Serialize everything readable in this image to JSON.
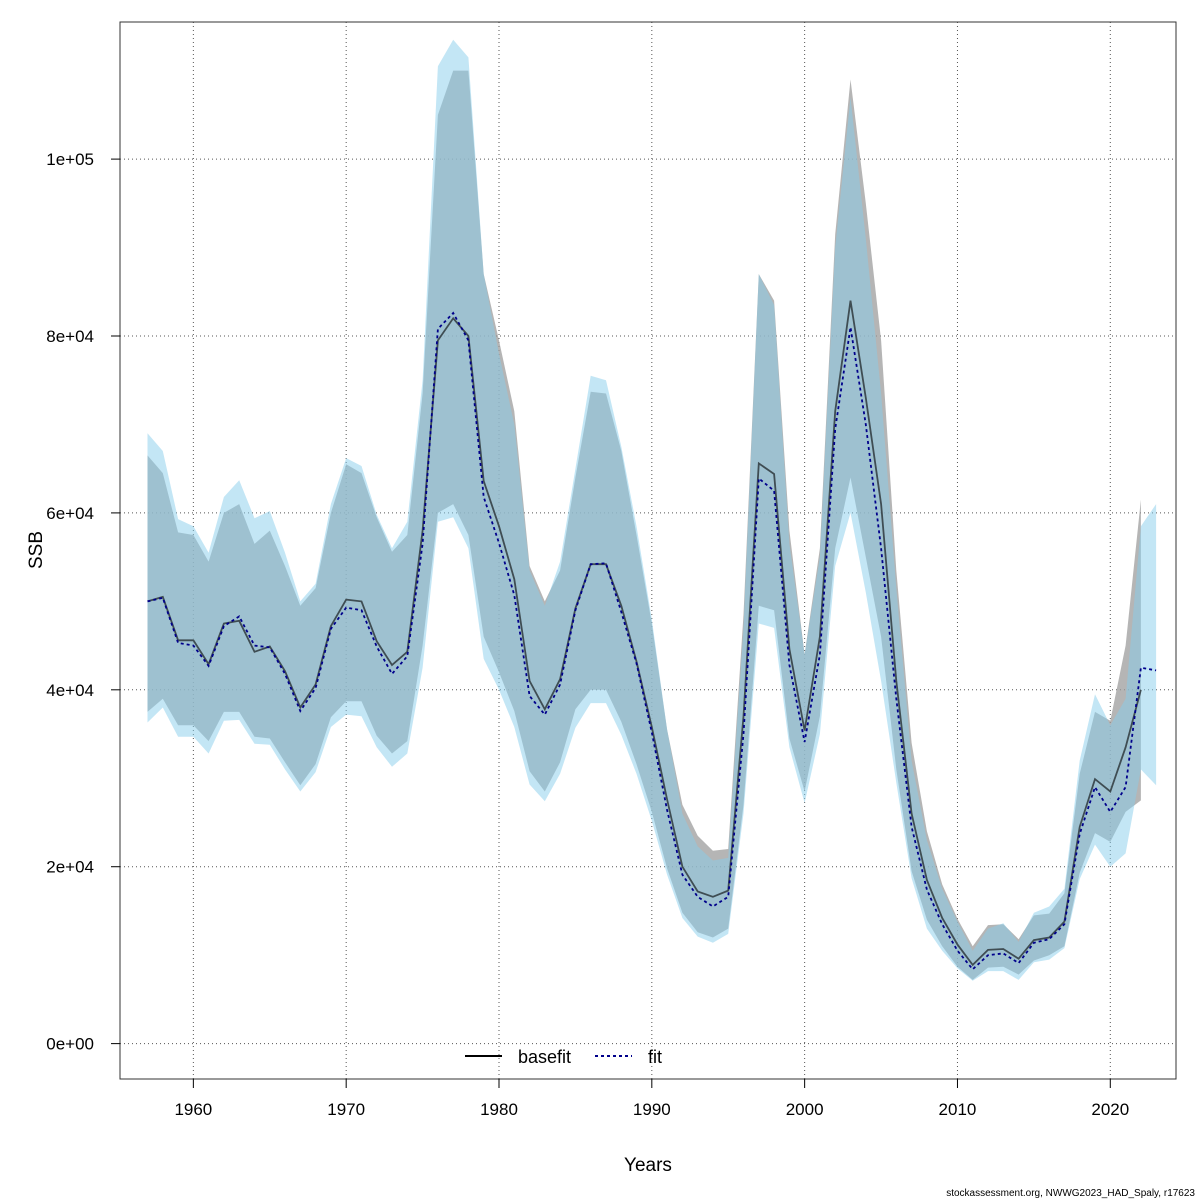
{
  "chart_data": {
    "type": "line",
    "xlabel": "Years",
    "ylabel": "SSB",
    "xlim": [
      1955.2,
      2024.3
    ],
    "ylim": [
      -4000,
      115500
    ],
    "x_ticks": [
      1960,
      1970,
      1980,
      1990,
      2000,
      2010,
      2020
    ],
    "x_tick_labels": [
      "1960",
      "1970",
      "1980",
      "1990",
      "2000",
      "2010",
      "2020"
    ],
    "y_ticks": [
      0,
      20000,
      40000,
      60000,
      80000,
      100000
    ],
    "y_tick_labels": [
      "0e+00",
      "2e+04",
      "4e+04",
      "6e+04",
      "8e+04",
      "1e+05"
    ],
    "grid": true,
    "legend_position": "bottom-center",
    "caption": "stockassessment.org, NWWG2023_HAD_Spaly, r17623",
    "colors": {
      "basefit_band": "#9c9c9c",
      "basefit_line": "#000000",
      "fit_band": "#87ceeb",
      "fit_line": "#00008b"
    },
    "series": [
      {
        "name": "basefit",
        "style": "solid",
        "x": [
          1957,
          1958,
          1959,
          1960,
          1961,
          1962,
          1963,
          1964,
          1965,
          1966,
          1967,
          1968,
          1969,
          1970,
          1971,
          1972,
          1973,
          1974,
          1975,
          1976,
          1977,
          1978,
          1979,
          1980,
          1981,
          1982,
          1983,
          1984,
          1985,
          1986,
          1987,
          1988,
          1989,
          1990,
          1991,
          1992,
          1993,
          1994,
          1995,
          1996,
          1997,
          1998,
          1999,
          2000,
          2001,
          2002,
          2003,
          2004,
          2005,
          2006,
          2007,
          2008,
          2009,
          2010,
          2011,
          2012,
          2013,
          2014,
          2015,
          2016,
          2017,
          2018,
          2019,
          2020,
          2021,
          2022
        ],
        "y": [
          50000,
          50500,
          45600,
          45600,
          42900,
          47500,
          47800,
          44300,
          44900,
          42100,
          38000,
          40600,
          47200,
          50200,
          50000,
          45500,
          42800,
          44300,
          58000,
          79500,
          82000,
          80000,
          63600,
          58500,
          52500,
          41000,
          37800,
          41200,
          49200,
          54200,
          54200,
          49500,
          43200,
          35800,
          27600,
          20000,
          17200,
          16600,
          17300,
          37000,
          65600,
          64400,
          44600,
          35400,
          46000,
          71500,
          84000,
          73000,
          61000,
          41000,
          26000,
          18500,
          14200,
          11200,
          8900,
          10600,
          10700,
          9600,
          11700,
          12000,
          13800,
          24500,
          29900,
          28500,
          33500,
          40000
        ],
        "lower": [
          37500,
          39000,
          36000,
          36000,
          34200,
          37500,
          37500,
          34700,
          34500,
          31800,
          29200,
          31600,
          36900,
          38700,
          38700,
          34800,
          32800,
          34200,
          45000,
          60000,
          61000,
          57500,
          46000,
          42000,
          37600,
          30800,
          28500,
          31800,
          37800,
          40000,
          40000,
          36400,
          31600,
          26200,
          19800,
          14800,
          12600,
          12000,
          13000,
          27000,
          49500,
          49000,
          34500,
          28500,
          37000,
          56000,
          64000,
          55000,
          46000,
          31000,
          19500,
          14000,
          11000,
          8700,
          7200,
          8600,
          8700,
          7800,
          9400,
          10000,
          11000,
          19300,
          23800,
          22800,
          26200,
          27500
        ],
        "upper": [
          66500,
          64500,
          57800,
          57500,
          54500,
          60000,
          61000,
          56500,
          58000,
          54000,
          49500,
          51500,
          60000,
          65500,
          64500,
          59500,
          55600,
          57500,
          73500,
          105000,
          110000,
          110000,
          87000,
          79500,
          71500,
          54000,
          50000,
          53500,
          64000,
          73700,
          73500,
          67000,
          57500,
          47500,
          35500,
          27000,
          23500,
          21800,
          22000,
          48500,
          87000,
          84000,
          58000,
          44000,
          56000,
          91500,
          109000,
          95000,
          79500,
          53500,
          34000,
          24000,
          18000,
          14100,
          11000,
          13400,
          13500,
          11800,
          14500,
          14700,
          17000,
          30500,
          37500,
          36500,
          45000,
          61500
        ]
      },
      {
        "name": "fit",
        "style": "dashed",
        "x": [
          1957,
          1958,
          1959,
          1960,
          1961,
          1962,
          1963,
          1964,
          1965,
          1966,
          1967,
          1968,
          1969,
          1970,
          1971,
          1972,
          1973,
          1974,
          1975,
          1976,
          1977,
          1978,
          1979,
          1980,
          1981,
          1982,
          1983,
          1984,
          1985,
          1986,
          1987,
          1988,
          1989,
          1990,
          1991,
          1992,
          1993,
          1994,
          1995,
          1996,
          1997,
          1998,
          1999,
          2000,
          2001,
          2002,
          2003,
          2004,
          2005,
          2006,
          2007,
          2008,
          2009,
          2010,
          2011,
          2012,
          2013,
          2014,
          2015,
          2016,
          2017,
          2018,
          2019,
          2020,
          2021,
          2022,
          2023
        ],
        "y": [
          50000,
          50400,
          45300,
          45000,
          42700,
          47200,
          48300,
          45000,
          44800,
          41800,
          37600,
          40200,
          46900,
          49300,
          49000,
          44900,
          41800,
          43800,
          56500,
          80800,
          82600,
          79500,
          61800,
          56600,
          50700,
          39300,
          37200,
          40600,
          49000,
          54200,
          54300,
          48800,
          43000,
          35200,
          26400,
          19100,
          16600,
          15500,
          16600,
          35000,
          63900,
          62500,
          42800,
          34100,
          44000,
          69500,
          81000,
          70000,
          56000,
          39000,
          24500,
          17400,
          13500,
          10500,
          8400,
          10000,
          10200,
          9100,
          11400,
          11800,
          13500,
          23700,
          29000,
          26200,
          29000,
          42500,
          42200
        ],
        "lower": [
          36300,
          38000,
          34700,
          34700,
          32800,
          36500,
          36600,
          33900,
          33800,
          31000,
          28500,
          30700,
          35800,
          37200,
          37000,
          33500,
          31300,
          32800,
          42500,
          59000,
          59500,
          56000,
          43500,
          40000,
          35800,
          29300,
          27400,
          30500,
          35700,
          38500,
          38500,
          34900,
          30500,
          25200,
          19100,
          14200,
          12100,
          11400,
          12400,
          26000,
          47500,
          47000,
          33500,
          27200,
          35000,
          54000,
          60000,
          51000,
          41000,
          29500,
          18700,
          13000,
          10500,
          8500,
          7100,
          8200,
          8200,
          7200,
          9200,
          9500,
          10800,
          18600,
          22500,
          20000,
          21500,
          31000,
          29200
        ],
        "upper": [
          69000,
          67000,
          59300,
          58500,
          55500,
          61800,
          63700,
          59400,
          60200,
          55500,
          50000,
          52000,
          61000,
          66200,
          65300,
          59800,
          56000,
          59000,
          75000,
          110500,
          113500,
          111500,
          87000,
          78000,
          70000,
          53500,
          49500,
          54500,
          65000,
          75500,
          75000,
          67500,
          58500,
          48000,
          35500,
          26000,
          22300,
          20700,
          21000,
          47000,
          87000,
          83500,
          56500,
          44000,
          55000,
          90000,
          107000,
          91000,
          73500,
          51500,
          32000,
          23000,
          17500,
          13800,
          10500,
          13000,
          13600,
          11500,
          14800,
          15500,
          17500,
          32000,
          39500,
          36000,
          39000,
          58500,
          61000
        ]
      }
    ]
  }
}
